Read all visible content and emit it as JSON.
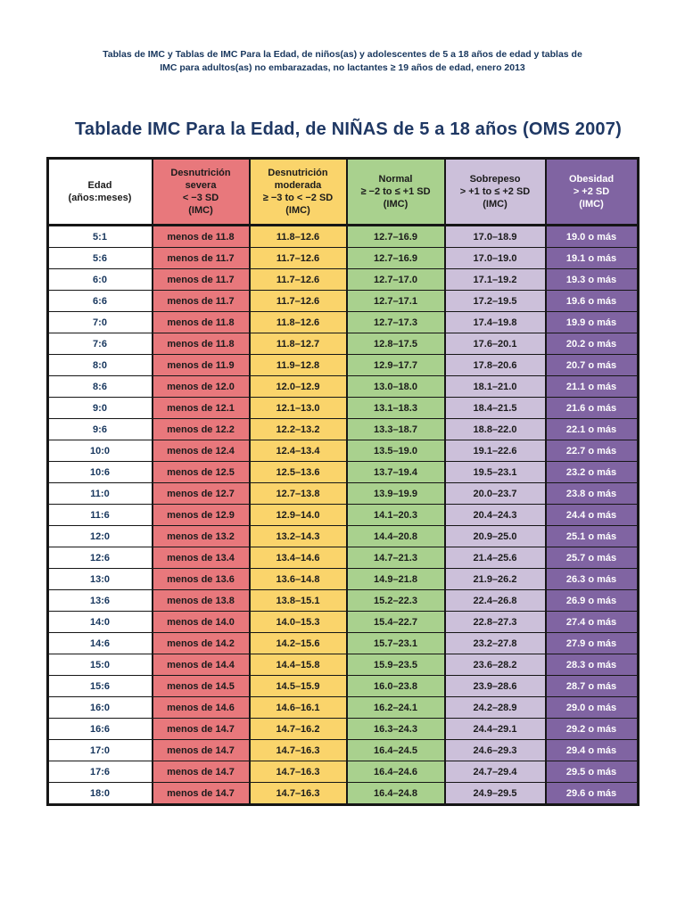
{
  "header": {
    "line1": "Tablas de IMC y Tablas de IMC Para la Edad, de niños(as) y adolescentes de 5 a 18 años de edad y tablas de",
    "line2": "IMC para adultos(as) no embarazadas, no lactantes ≥ 19 años de edad, enero 2013"
  },
  "title": "Tablade IMC Para la Edad, de NIÑAS de 5 a 18 años (OMS 2007)",
  "colors": {
    "note_text": "#17365D",
    "title_text": "#1F3864",
    "severa_bg": "#E8787C",
    "moderada_bg": "#FAD46B",
    "normal_bg": "#A9D18E",
    "sobrepeso_bg": "#CCC0DA",
    "obesidad_bg": "#8064A2",
    "border": "#161616",
    "cell_text": "#1B1B1B",
    "edad_text": "#17365D",
    "obesidad_text": "#FFFFFF"
  },
  "table": {
    "columns": [
      {
        "id": "edad",
        "label": "Edad\n(años:meses)",
        "bg": "#FFFFFF",
        "text": "#1B1B1B",
        "cell_text": "#17365D"
      },
      {
        "id": "desnutricion-severa",
        "label": "Desnutrición\nsevera\n< −3 SD\n(IMC)",
        "bg": "#E8787C",
        "text": "#1B1B1B",
        "cell_text": "#1B1B1B"
      },
      {
        "id": "desnutricion-moderada",
        "label": "Desnutrición\nmoderada\n≥ −3 to < −2 SD\n(IMC)",
        "bg": "#FAD46B",
        "text": "#1B1B1B",
        "cell_text": "#1B1B1B"
      },
      {
        "id": "normal",
        "label": "Normal\n≥ −2 to ≤ +1 SD\n(IMC)",
        "bg": "#A9D18E",
        "text": "#1B1B1B",
        "cell_text": "#1B1B1B"
      },
      {
        "id": "sobrepeso",
        "label": "Sobrepeso\n> +1 to ≤ +2 SD\n(IMC)",
        "bg": "#CCC0DA",
        "text": "#1B1B1B",
        "cell_text": "#1B1B1B"
      },
      {
        "id": "obesidad",
        "label": "Obesidad\n> +2 SD\n(IMC)",
        "bg": "#8064A2",
        "text": "#FFFFFF",
        "cell_text": "#FFFFFF"
      }
    ],
    "rows": [
      [
        "5:1",
        "menos de 11.8",
        "11.8–12.6",
        "12.7–16.9",
        "17.0–18.9",
        "19.0 o más"
      ],
      [
        "5:6",
        "menos de 11.7",
        "11.7–12.6",
        "12.7–16.9",
        "17.0–19.0",
        "19.1 o más"
      ],
      [
        "6:0",
        "menos de 11.7",
        "11.7–12.6",
        "12.7–17.0",
        "17.1–19.2",
        "19.3 o más"
      ],
      [
        "6:6",
        "menos de 11.7",
        "11.7–12.6",
        "12.7–17.1",
        "17.2–19.5",
        "19.6 o más"
      ],
      [
        "7:0",
        "menos de 11.8",
        "11.8–12.6",
        "12.7–17.3",
        "17.4–19.8",
        "19.9 o más"
      ],
      [
        "7:6",
        "menos de 11.8",
        "11.8–12.7",
        "12.8–17.5",
        "17.6–20.1",
        "20.2 o más"
      ],
      [
        "8:0",
        "menos de 11.9",
        "11.9–12.8",
        "12.9–17.7",
        "17.8–20.6",
        "20.7 o más"
      ],
      [
        "8:6",
        "menos de 12.0",
        "12.0–12.9",
        "13.0–18.0",
        "18.1–21.0",
        "21.1 o más"
      ],
      [
        "9:0",
        "menos de 12.1",
        "12.1–13.0",
        "13.1–18.3",
        "18.4–21.5",
        "21.6 o más"
      ],
      [
        "9:6",
        "menos de 12.2",
        "12.2–13.2",
        "13.3–18.7",
        "18.8–22.0",
        "22.1 o más"
      ],
      [
        "10:0",
        "menos de 12.4",
        "12.4–13.4",
        "13.5–19.0",
        "19.1–22.6",
        "22.7 o más"
      ],
      [
        "10:6",
        "menos de 12.5",
        "12.5–13.6",
        "13.7–19.4",
        "19.5–23.1",
        "23.2 o más"
      ],
      [
        "11:0",
        "menos de 12.7",
        "12.7–13.8",
        "13.9–19.9",
        "20.0–23.7",
        "23.8 o más"
      ],
      [
        "11:6",
        "menos de 12.9",
        "12.9–14.0",
        "14.1–20.3",
        "20.4–24.3",
        "24.4 o más"
      ],
      [
        "12:0",
        "menos de 13.2",
        "13.2–14.3",
        "14.4–20.8",
        "20.9–25.0",
        "25.1 o más"
      ],
      [
        "12:6",
        "menos de 13.4",
        "13.4–14.6",
        "14.7–21.3",
        "21.4–25.6",
        "25.7 o más"
      ],
      [
        "13:0",
        "menos de 13.6",
        "13.6–14.8",
        "14.9–21.8",
        "21.9–26.2",
        "26.3 o más"
      ],
      [
        "13:6",
        "menos de 13.8",
        "13.8–15.1",
        "15.2–22.3",
        "22.4–26.8",
        "26.9 o más"
      ],
      [
        "14:0",
        "menos de 14.0",
        "14.0–15.3",
        "15.4–22.7",
        "22.8–27.3",
        "27.4 o más"
      ],
      [
        "14:6",
        "menos de 14.2",
        "14.2–15.6",
        "15.7–23.1",
        "23.2–27.8",
        "27.9 o más"
      ],
      [
        "15:0",
        "menos de 14.4",
        "14.4–15.8",
        "15.9–23.5",
        "23.6–28.2",
        "28.3 o más"
      ],
      [
        "15:6",
        "menos de 14.5",
        "14.5–15.9",
        "16.0–23.8",
        "23.9–28.6",
        "28.7 o más"
      ],
      [
        "16:0",
        "menos de 14.6",
        "14.6–16.1",
        "16.2–24.1",
        "24.2–28.9",
        "29.0 o más"
      ],
      [
        "16:6",
        "menos de 14.7",
        "14.7–16.2",
        "16.3–24.3",
        "24.4–29.1",
        "29.2 o más"
      ],
      [
        "17:0",
        "menos de 14.7",
        "14.7–16.3",
        "16.4–24.5",
        "24.6–29.3",
        "29.4 o más"
      ],
      [
        "17:6",
        "menos de 14.7",
        "14.7–16.3",
        "16.4–24.6",
        "24.7–29.4",
        "29.5 o más"
      ],
      [
        "18:0",
        "menos de 14.7",
        "14.7–16.3",
        "16.4–24.8",
        "24.9–29.5",
        "29.6 o más"
      ]
    ]
  }
}
